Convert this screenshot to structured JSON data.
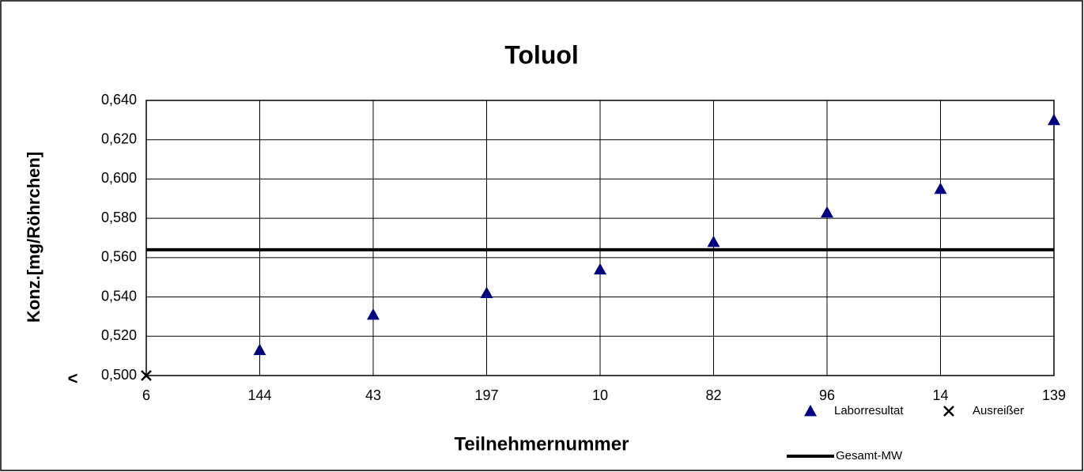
{
  "chart_data": {
    "type": "scatter",
    "title": "Toluol",
    "x_label": "Teilnehmernummer",
    "y_label": "Konz.[mg/Röhrchen]",
    "categories": [
      "6",
      "144",
      "43",
      "197",
      "10",
      "82",
      "96",
      "14",
      "139"
    ],
    "series": [
      {
        "name": "Laborresultat",
        "color": "#000080",
        "marker": "triangle",
        "values": [
          null,
          0.513,
          0.531,
          0.542,
          0.554,
          0.568,
          0.583,
          0.595,
          0.63
        ]
      },
      {
        "name": "Ausreißer",
        "color": "#000000",
        "marker": "x",
        "values": [
          0.5,
          null,
          null,
          null,
          null,
          null,
          null,
          null,
          null
        ]
      },
      {
        "name": "Gesamt-MW",
        "color": "#000000",
        "marker": "line",
        "values": [
          0.564,
          0.564,
          0.564,
          0.564,
          0.564,
          0.564,
          0.564,
          0.564,
          0.564
        ]
      }
    ],
    "annotations": [
      "<"
    ],
    "ylim": [
      0.5,
      0.64
    ],
    "yticks": [
      {
        "value": 0.5,
        "label": "0,500"
      },
      {
        "value": 0.52,
        "label": "0,520"
      },
      {
        "value": 0.54,
        "label": "0,540"
      },
      {
        "value": 0.56,
        "label": "0,560"
      },
      {
        "value": 0.58,
        "label": "0,580"
      },
      {
        "value": 0.6,
        "label": "0,600"
      },
      {
        "value": 0.62,
        "label": "0,620"
      },
      {
        "value": 0.64,
        "label": "0,640"
      }
    ],
    "grid": true,
    "legend": "bottom-right"
  }
}
